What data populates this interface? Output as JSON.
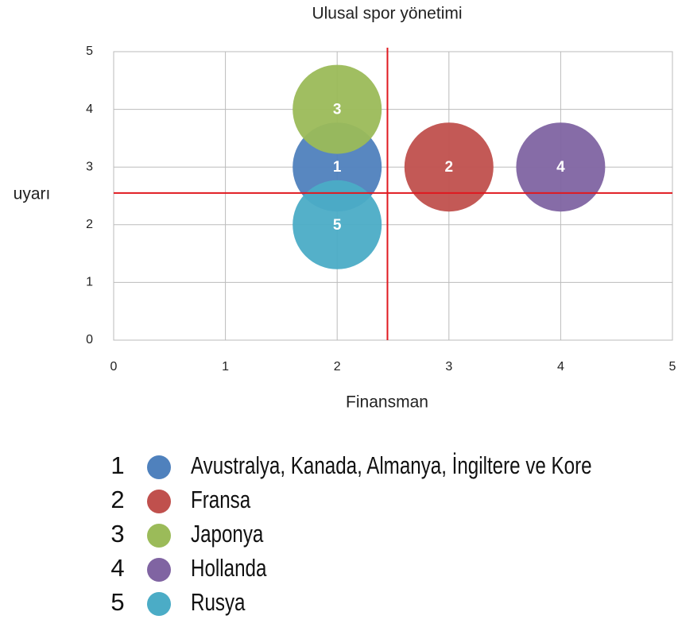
{
  "chart_data": {
    "type": "bubble",
    "title": "Ulusal spor yönetimi",
    "x_label": "Finansman",
    "y_label": "uyarı",
    "xlim": [
      0,
      5
    ],
    "ylim": [
      0,
      5
    ],
    "xticks": [
      0,
      1,
      2,
      3,
      4,
      5
    ],
    "yticks": [
      0,
      1,
      2,
      3,
      4,
      5
    ],
    "grid": true,
    "vlines": [
      2.45
    ],
    "hlines": [
      2.55
    ],
    "line_color": "#e0191f",
    "series": [
      {
        "number": "1",
        "name": "Avustralya, Kanada, Almanya, İngiltere ve Kore",
        "color": "#4f81bd",
        "x": [
          2
        ],
        "values": [
          3
        ]
      },
      {
        "number": "2",
        "name": "Fransa",
        "color": "#c0504d",
        "x": [
          3
        ],
        "values": [
          3
        ]
      },
      {
        "number": "3",
        "name": "Japonya",
        "color": "#9bbb59",
        "x": [
          2
        ],
        "values": [
          4
        ]
      },
      {
        "number": "4",
        "name": "Hollanda",
        "color": "#8064a2",
        "x": [
          4
        ],
        "values": [
          3
        ]
      },
      {
        "number": "5",
        "name": "Rusya",
        "color": "#4bacc6",
        "x": [
          2
        ],
        "values": [
          2
        ]
      }
    ]
  }
}
